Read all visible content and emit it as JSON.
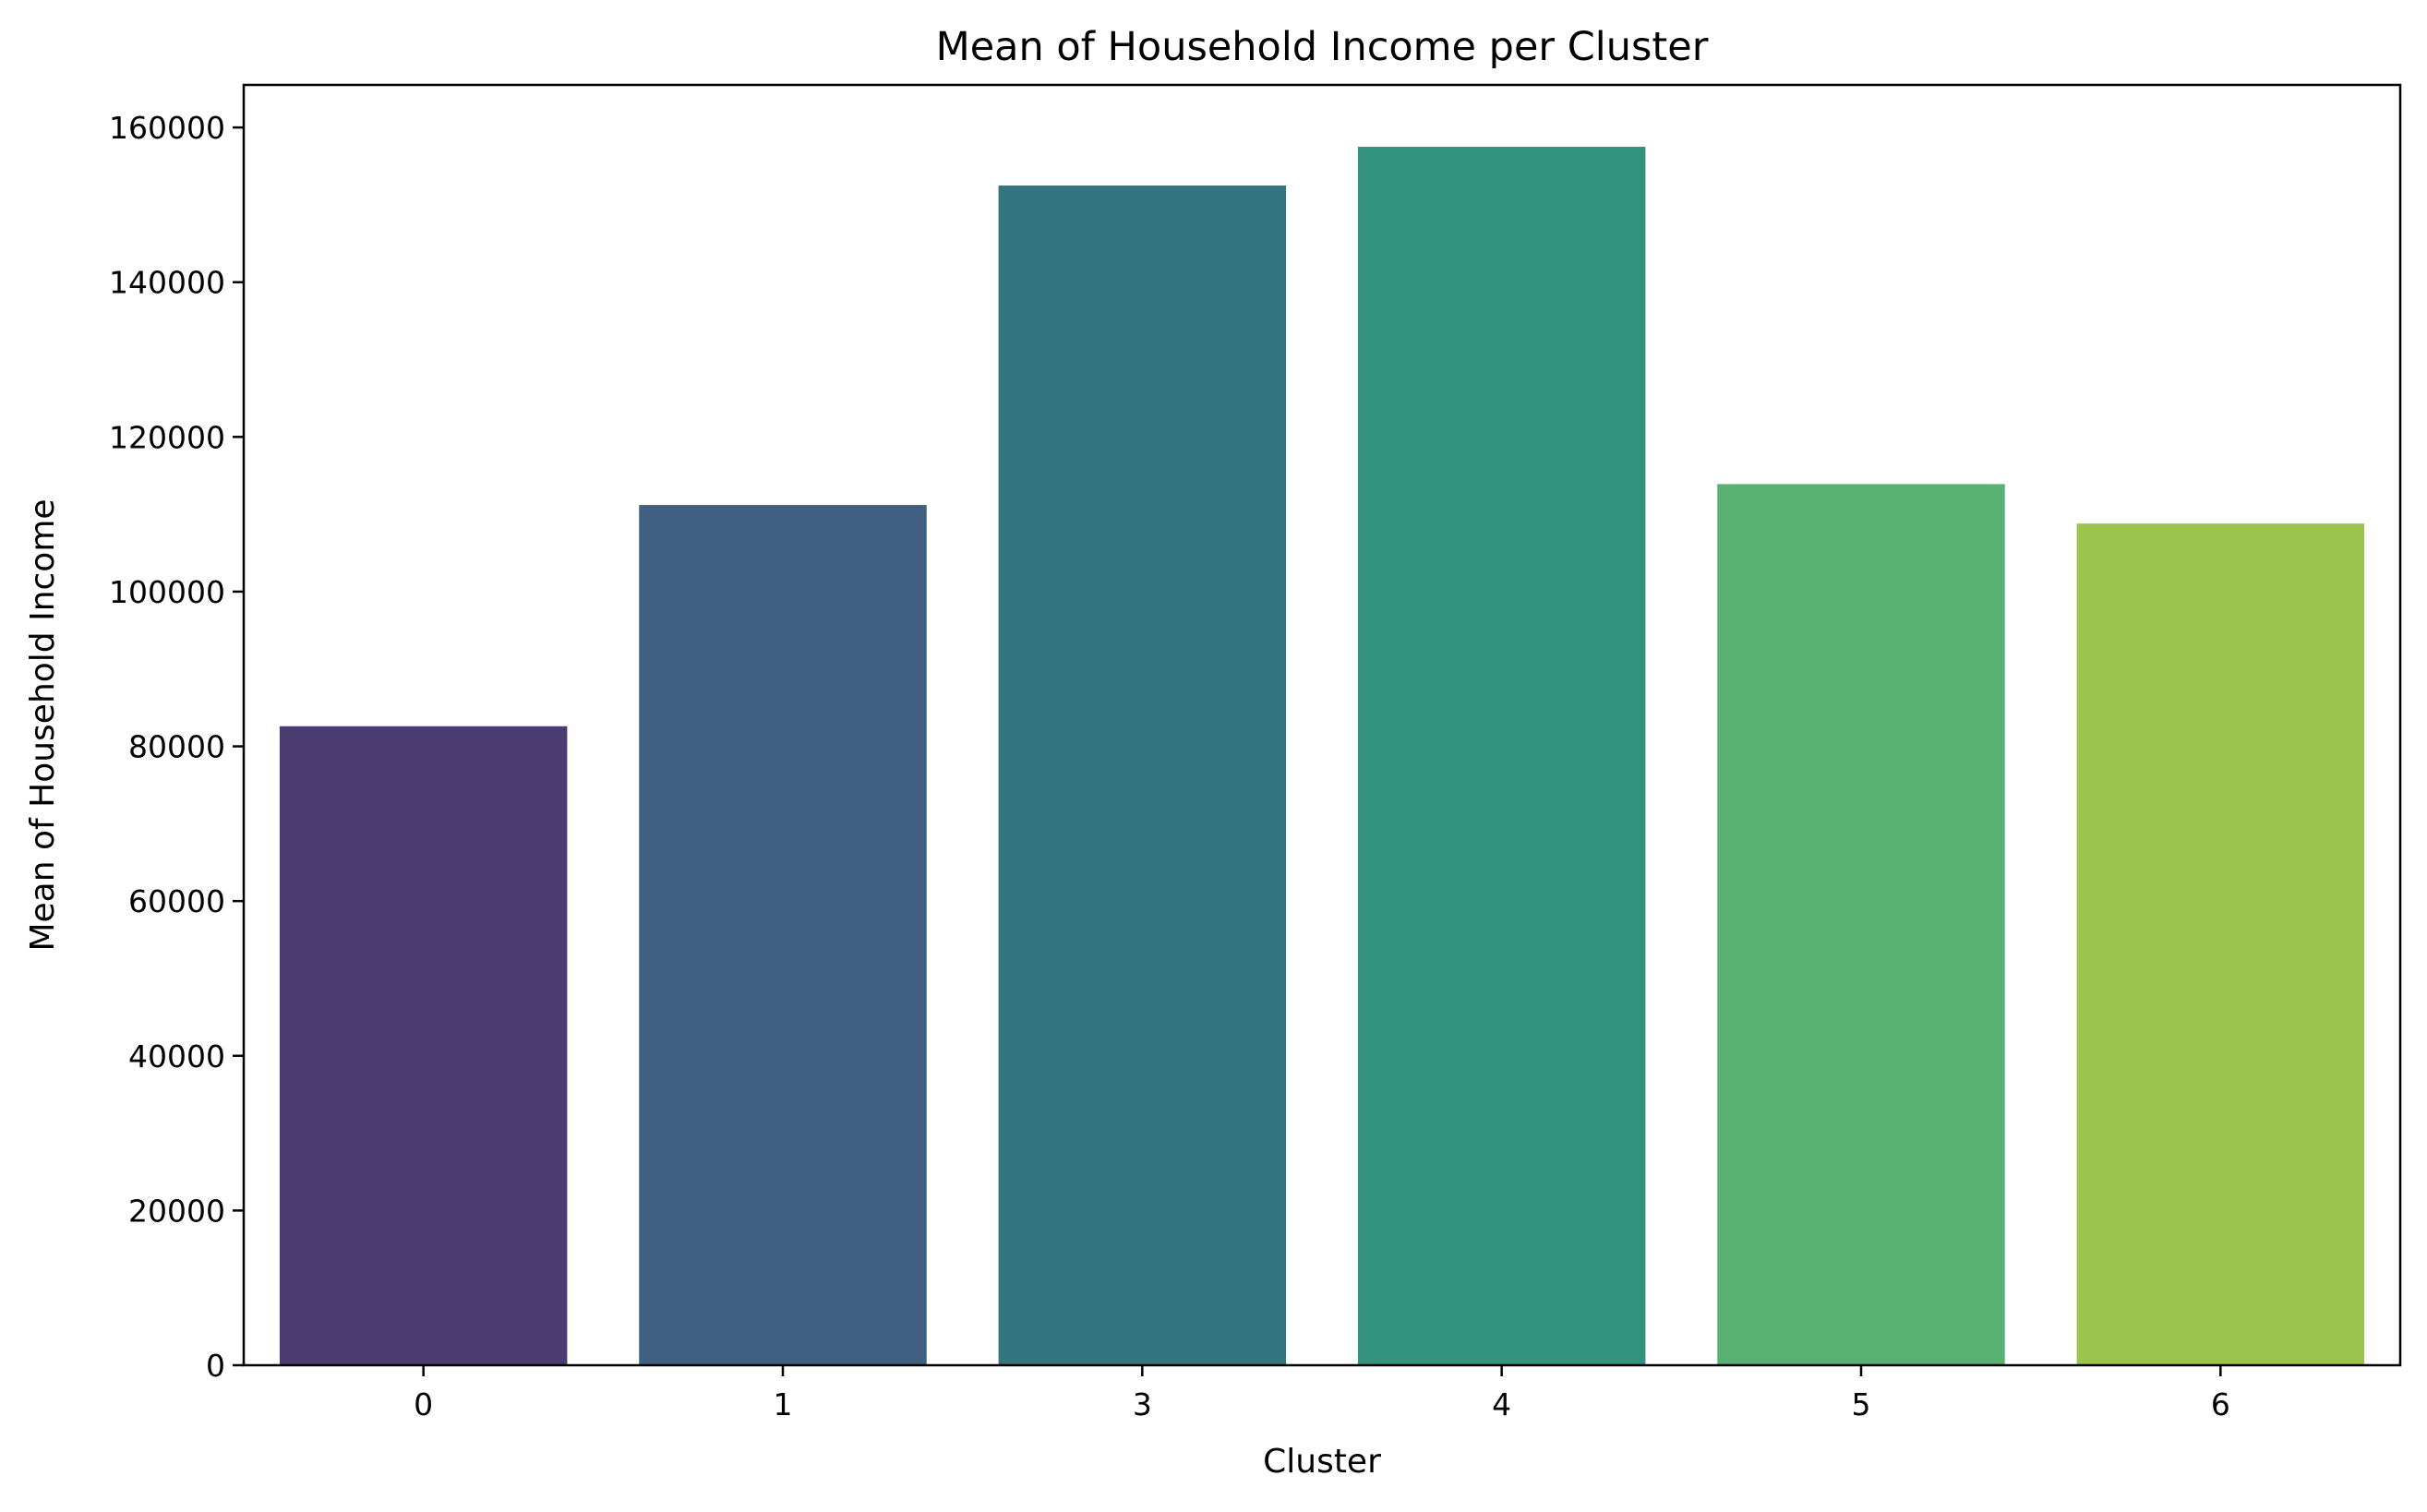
{
  "chart_data": {
    "type": "bar",
    "title": "Mean of Household Income per Cluster",
    "xlabel": "Cluster",
    "ylabel": "Mean of Household Income",
    "categories": [
      "0",
      "1",
      "3",
      "4",
      "5",
      "6"
    ],
    "values": [
      82600,
      111200,
      152500,
      157500,
      113900,
      108800
    ],
    "colors": [
      "#4a3c73",
      "#415f80",
      "#34757f",
      "#32927e",
      "#58b073",
      "#9bc44d"
    ],
    "ylim": [
      0,
      165500
    ],
    "yticks": [
      0,
      20000,
      40000,
      60000,
      80000,
      100000,
      120000,
      140000,
      160000
    ],
    "ytick_labels": [
      "0",
      "20000",
      "40000",
      "60000",
      "80000",
      "100000",
      "120000",
      "140000",
      "160000"
    ],
    "grid": false,
    "legend": "none"
  }
}
